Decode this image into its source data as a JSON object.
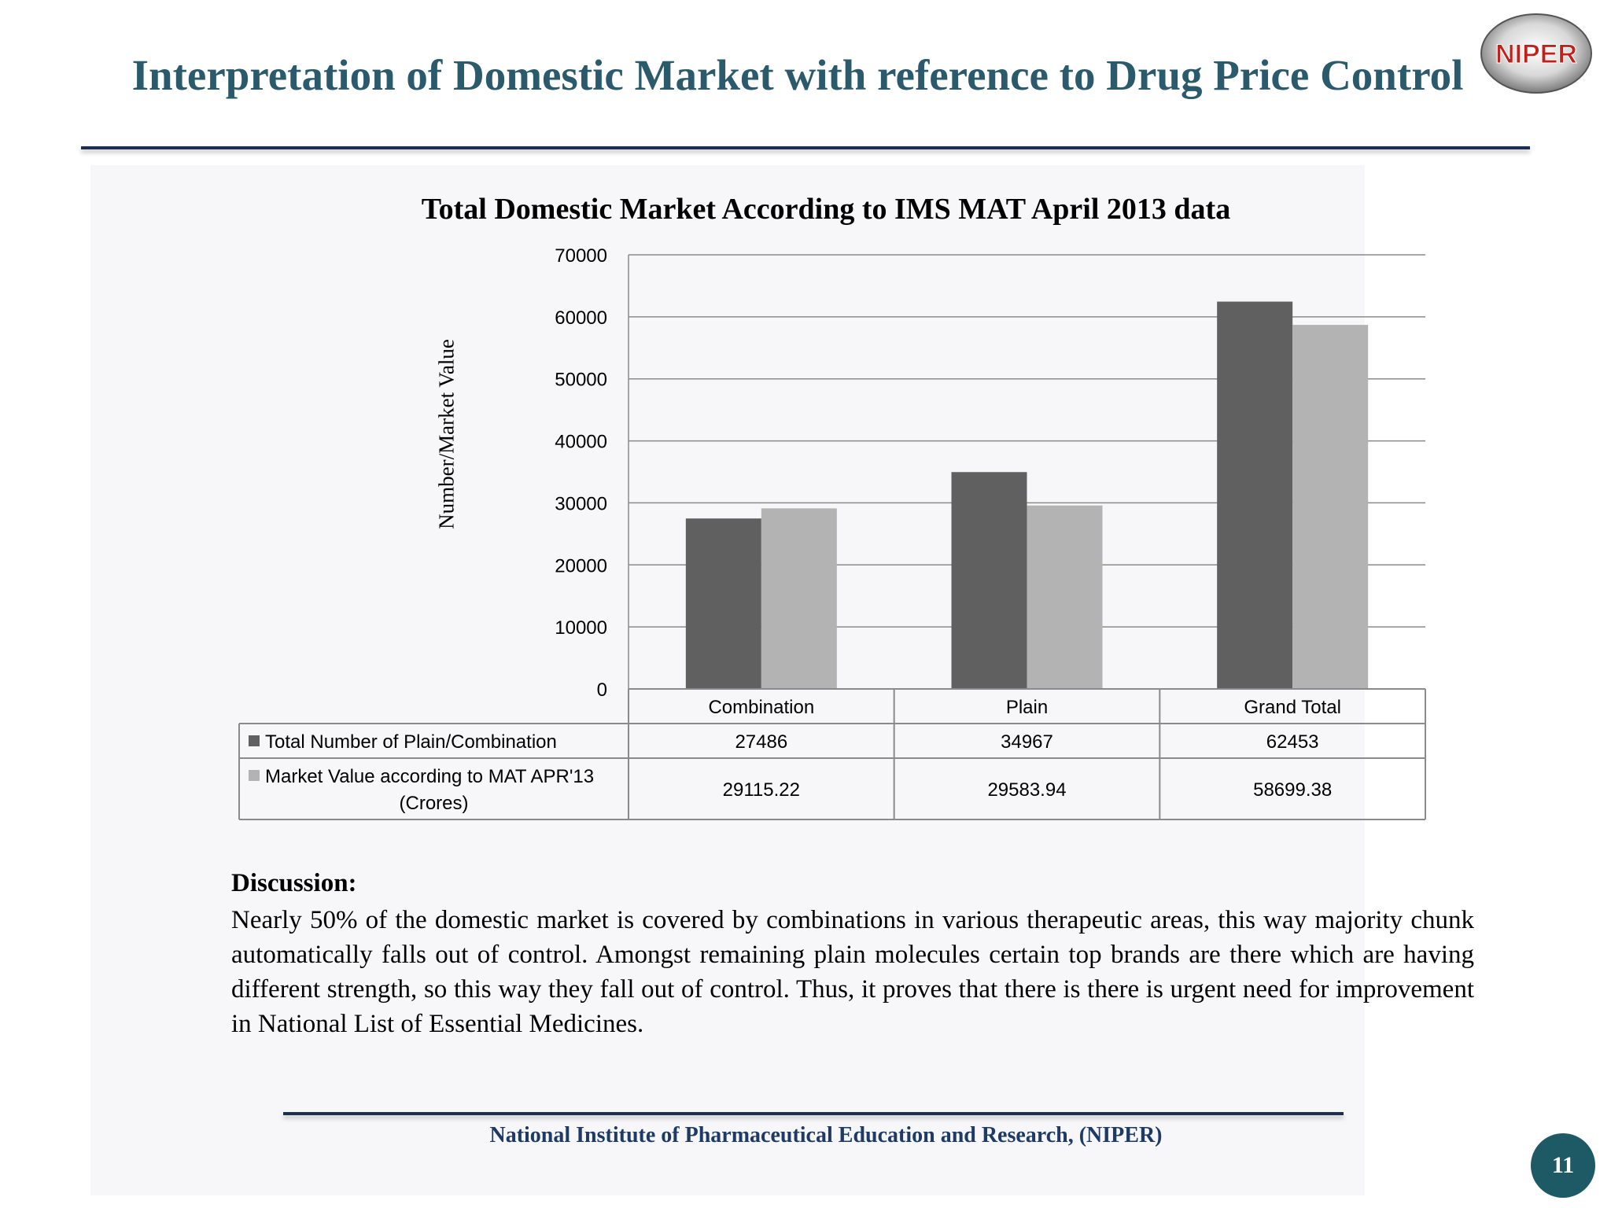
{
  "slide": {
    "title": "Interpretation of Domestic Market with reference to Drug Price Control",
    "logo_text": "NIPER",
    "discussion_heading": "Discussion:",
    "discussion_text": "Nearly 50% of the domestic market is covered by combinations in various therapeutic areas, this way majority chunk automatically falls out of control. Amongst remaining plain molecules certain top brands are there which are having different strength, so this way they fall out of control. Thus, it proves that there is there is urgent need for improvement in National List of Essential Medicines.",
    "footer": "National Institute of Pharmaceutical Education and Research, (NIPER)",
    "page_number": "11"
  },
  "chart_data": {
    "type": "bar",
    "title": "Total Domestic Market According to IMS MAT April 2013 data",
    "ylabel": "Number/Market Value",
    "xlabel": "",
    "ylim": [
      0,
      70000
    ],
    "yticks": [
      "0",
      "10000",
      "20000",
      "30000",
      "40000",
      "50000",
      "60000",
      "70000"
    ],
    "grid": true,
    "legend": "data-table-below",
    "categories": [
      "Combination",
      "Plain",
      "Grand Total"
    ],
    "series": [
      {
        "name": "Total Number of Plain/Combination",
        "name_lines": [
          "Total Number of Plain/Combination"
        ],
        "color": "#606060",
        "values": [
          27486,
          34967,
          62453
        ],
        "labels": [
          "27486",
          "34967",
          "62453"
        ]
      },
      {
        "name": "Market Value according to MAT APR'13 (Crores)",
        "name_lines": [
          "Market Value according to MAT APR'13",
          "(Crores)"
        ],
        "color": "#b3b3b3",
        "values": [
          29115.22,
          29583.94,
          58699.38
        ],
        "labels": [
          "29115.22",
          "29583.94",
          "58699.38"
        ]
      }
    ]
  }
}
